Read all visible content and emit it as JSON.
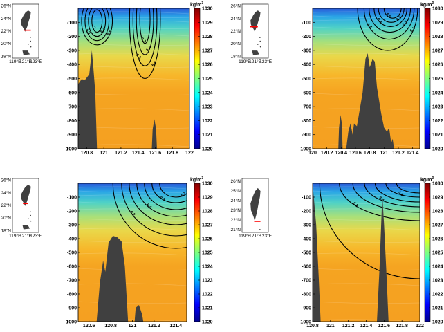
{
  "figure": {
    "panels": 4
  },
  "colors": {
    "cmap": [
      "#00008f",
      "#0000ff",
      "#007fff",
      "#00ffff",
      "#7fff7f",
      "#ffff00",
      "#ff7f00",
      "#ff0000",
      "#7f0000"
    ],
    "land": "#404040",
    "contour": "#000000",
    "section": "#ff0000"
  },
  "chart_data": [
    {
      "type": "heatmap",
      "title": "",
      "xlabel": "",
      "ylabel": "",
      "x_ticks": [
        "120.8",
        "121",
        "121.2",
        "121.4",
        "121.6",
        "121.8",
        "122"
      ],
      "y_ticks": [
        "-100",
        "-200",
        "-300",
        "-400",
        "-500",
        "-600",
        "-700",
        "-800",
        "-900",
        "-1000"
      ],
      "xlim": [
        120.7,
        122.0
      ],
      "ylim": [
        -1000,
        0
      ],
      "colorbar": {
        "unit_label": "kg/m",
        "unit_sup": "3",
        "ticks": [
          "1030",
          "1029",
          "1028",
          "1027",
          "1026",
          "1025",
          "1024",
          "1023",
          "1022",
          "1021",
          "1020"
        ],
        "range": [
          1020,
          1030
        ]
      },
      "contours": [
        {
          "label": "6.5",
          "cx": 120.92,
          "cy": -90,
          "rx": 0.18,
          "ry": 170
        },
        {
          "label": "6.3",
          "cx": 120.92,
          "cy": -90,
          "rx": 0.14,
          "ry": 140
        },
        {
          "label": "6.4",
          "cx": 120.92,
          "cy": -90,
          "rx": 0.1,
          "ry": 110
        },
        {
          "label": "7",
          "cx": 120.92,
          "cy": -90,
          "rx": 0.06,
          "ry": 80
        },
        {
          "label": "6.6",
          "cx": 121.48,
          "cy": -80,
          "rx": 0.18,
          "ry": 420
        },
        {
          "label": "6.5",
          "cx": 121.48,
          "cy": -80,
          "rx": 0.14,
          "ry": 330
        },
        {
          "label": "6.4",
          "cx": 121.48,
          "cy": -80,
          "rx": 0.1,
          "ry": 250
        },
        {
          "label": "6.3",
          "cx": 121.48,
          "cy": -80,
          "rx": 0.06,
          "ry": 170
        }
      ],
      "land": [
        {
          "x": 120.7,
          "y": -1000
        },
        {
          "x": 120.7,
          "y": -540
        },
        {
          "x": 120.74,
          "y": -505
        },
        {
          "x": 120.78,
          "y": -510
        },
        {
          "x": 120.83,
          "y": -470
        },
        {
          "x": 120.86,
          "y": -300
        },
        {
          "x": 120.88,
          "y": -440
        },
        {
          "x": 120.9,
          "y": -600
        },
        {
          "x": 120.92,
          "y": -1000
        },
        {
          "x": 121.56,
          "y": -1000
        },
        {
          "x": 121.57,
          "y": -860
        },
        {
          "x": 121.59,
          "y": -790
        },
        {
          "x": 121.61,
          "y": -860
        },
        {
          "x": 121.62,
          "y": -1000
        }
      ],
      "map": {
        "lat_ticks": [
          "26°N",
          "24°N",
          "22°N",
          "20°N",
          "18°N"
        ],
        "lon_ticks": [
          "119°E",
          "121°E",
          "123°E"
        ],
        "section": [
          [
            120.75,
            22.15
          ],
          [
            122.0,
            22.15
          ]
        ]
      }
    },
    {
      "type": "heatmap",
      "title": "",
      "xlabel": "",
      "ylabel": "",
      "x_ticks": [
        "120",
        "120.2",
        "120.4",
        "120.6",
        "120.8",
        "121",
        "121.2",
        "121.4"
      ],
      "y_ticks": [
        "-100",
        "-200",
        "-300",
        "-400",
        "-500",
        "-600",
        "-700",
        "-800",
        "-900",
        "-1000"
      ],
      "xlim": [
        120.0,
        121.5
      ],
      "ylim": [
        -1000,
        0
      ],
      "colorbar": {
        "unit_label": "kg/m",
        "unit_sup": "3",
        "ticks": [
          "1030",
          "1029",
          "1028",
          "1027",
          "1026",
          "1025",
          "1024",
          "1023",
          "1022",
          "1021",
          "1020"
        ],
        "range": [
          1020,
          1030
        ]
      },
      "contours": [
        {
          "label": "6.1",
          "cx": 121.05,
          "cy": 0,
          "rx": 0.42,
          "ry": 300
        },
        {
          "label": "6.2",
          "cx": 121.07,
          "cy": 0,
          "rx": 0.35,
          "ry": 220
        },
        {
          "label": "6.3",
          "cx": 121.08,
          "cy": 0,
          "rx": 0.29,
          "ry": 170
        },
        {
          "label": "6.4",
          "cx": 121.09,
          "cy": 0,
          "rx": 0.23,
          "ry": 130
        },
        {
          "label": "6.5",
          "cx": 121.1,
          "cy": 0,
          "rx": 0.18,
          "ry": 100
        },
        {
          "label": "6.6",
          "cx": 121.12,
          "cy": 0,
          "rx": 0.12,
          "ry": 70
        }
      ],
      "land": [
        {
          "x": 120.36,
          "y": -1000
        },
        {
          "x": 120.37,
          "y": -850
        },
        {
          "x": 120.39,
          "y": -760
        },
        {
          "x": 120.41,
          "y": -820
        },
        {
          "x": 120.42,
          "y": -1000
        },
        {
          "x": 120.47,
          "y": -1000
        },
        {
          "x": 120.5,
          "y": -880
        },
        {
          "x": 120.53,
          "y": -820
        },
        {
          "x": 120.56,
          "y": -900
        },
        {
          "x": 120.58,
          "y": -820
        },
        {
          "x": 120.62,
          "y": -840
        },
        {
          "x": 120.66,
          "y": -720
        },
        {
          "x": 120.7,
          "y": -600
        },
        {
          "x": 120.74,
          "y": -360
        },
        {
          "x": 120.77,
          "y": -320
        },
        {
          "x": 120.8,
          "y": -420
        },
        {
          "x": 120.84,
          "y": -360
        },
        {
          "x": 120.87,
          "y": -380
        },
        {
          "x": 120.9,
          "y": -560
        },
        {
          "x": 120.96,
          "y": -750
        },
        {
          "x": 121.0,
          "y": -850
        },
        {
          "x": 121.04,
          "y": -880
        },
        {
          "x": 121.07,
          "y": -850
        },
        {
          "x": 121.1,
          "y": -960
        },
        {
          "x": 121.12,
          "y": -930
        },
        {
          "x": 121.14,
          "y": -1000
        }
      ],
      "map": {
        "lat_ticks": [
          "26°N",
          "24°N",
          "22°N",
          "20°N",
          "18°N"
        ],
        "lon_ticks": [
          "119°E",
          "121°E",
          "123°E"
        ],
        "section": [
          [
            120.0,
            22.7
          ],
          [
            121.5,
            22.7
          ]
        ]
      }
    },
    {
      "type": "heatmap",
      "title": "",
      "xlabel": "",
      "ylabel": "",
      "x_ticks": [
        "120.6",
        "120.8",
        "121",
        "121.2",
        "121.4"
      ],
      "y_ticks": [
        "-100",
        "-200",
        "-300",
        "-400",
        "-500",
        "-600",
        "-700",
        "-800",
        "-900",
        "-1000"
      ],
      "xlim": [
        120.5,
        121.5
      ],
      "ylim": [
        -1000,
        0
      ],
      "colorbar": {
        "unit_label": "kg/m",
        "unit_sup": "3",
        "ticks": [
          "1030",
          "1029",
          "1028",
          "1027",
          "1026",
          "1025",
          "1024",
          "1023",
          "1022",
          "1021",
          "1020"
        ],
        "range": [
          1020,
          1030
        ]
      },
      "contours": [
        {
          "label": "6.1",
          "cx": 121.4,
          "cy": 0,
          "rx": 0.58,
          "ry": 470
        },
        {
          "label": "6.2",
          "cx": 121.4,
          "cy": 0,
          "rx": 0.5,
          "ry": 380
        },
        {
          "label": "6.3",
          "cx": 121.4,
          "cy": 0,
          "rx": 0.43,
          "ry": 300
        },
        {
          "label": "6.4",
          "cx": 121.4,
          "cy": 0,
          "rx": 0.36,
          "ry": 240
        },
        {
          "label": "6.5",
          "cx": 121.4,
          "cy": 0,
          "rx": 0.29,
          "ry": 190
        },
        {
          "label": "6.6",
          "cx": 121.4,
          "cy": 0,
          "rx": 0.22,
          "ry": 140
        },
        {
          "label": "6.7",
          "cx": 121.4,
          "cy": 0,
          "rx": 0.15,
          "ry": 100
        }
      ],
      "land": [
        {
          "x": 120.67,
          "y": -1000
        },
        {
          "x": 120.7,
          "y": -720
        },
        {
          "x": 120.73,
          "y": -560
        },
        {
          "x": 120.75,
          "y": -640
        },
        {
          "x": 120.78,
          "y": -430
        },
        {
          "x": 120.82,
          "y": -380
        },
        {
          "x": 120.86,
          "y": -390
        },
        {
          "x": 120.9,
          "y": -420
        },
        {
          "x": 120.93,
          "y": -600
        },
        {
          "x": 120.96,
          "y": -1000
        },
        {
          "x": 121.02,
          "y": -1000
        },
        {
          "x": 121.03,
          "y": -900
        },
        {
          "x": 121.06,
          "y": -880
        },
        {
          "x": 121.09,
          "y": -950
        },
        {
          "x": 121.1,
          "y": -1000
        }
      ],
      "map": {
        "lat_ticks": [
          "26°N",
          "24°N",
          "22°N",
          "20°N",
          "18°N"
        ],
        "lon_ticks": [
          "119°E",
          "121°E",
          "123°E"
        ],
        "section": [
          [
            120.5,
            22.3
          ],
          [
            121.5,
            22.3
          ]
        ]
      }
    },
    {
      "type": "heatmap",
      "title": "",
      "xlabel": "",
      "ylabel": "",
      "x_ticks": [
        "120.8",
        "121",
        "121.2",
        "121.4",
        "121.6",
        "121.8",
        "122"
      ],
      "y_ticks": [
        "-100",
        "-200",
        "-300",
        "-400",
        "-500",
        "-600",
        "-700",
        "-800",
        "-900",
        "-1000"
      ],
      "xlim": [
        120.8,
        122.0
      ],
      "ylim": [
        -1000,
        0
      ],
      "colorbar": {
        "unit_label": "kg/m",
        "unit_sup": "3",
        "ticks": [
          "1030",
          "1029",
          "1028",
          "1027",
          "1026",
          "1025",
          "1024",
          "1023",
          "1022",
          "1021",
          "1020"
        ],
        "range": [
          1020,
          1030
        ]
      },
      "contours": [
        {
          "label": "6.1",
          "cx": 122.0,
          "cy": 0,
          "rx": 1.12,
          "ry": 690
        },
        {
          "label": "6.2",
          "cx": 122.0,
          "cy": 0,
          "rx": 0.9,
          "ry": 270
        },
        {
          "label": "6.3",
          "cx": 122.0,
          "cy": 0,
          "rx": 0.75,
          "ry": 210
        },
        {
          "label": "6.4",
          "cx": 122.0,
          "cy": 0,
          "rx": 0.62,
          "ry": 170
        },
        {
          "label": "6.5",
          "cx": 122.0,
          "cy": 0,
          "rx": 0.5,
          "ry": 135
        },
        {
          "label": "6.6",
          "cx": 122.0,
          "cy": 0,
          "rx": 0.38,
          "ry": 100
        },
        {
          "label": "6.7",
          "cx": 122.0,
          "cy": 0,
          "rx": 0.26,
          "ry": 70
        }
      ],
      "land": [
        {
          "x": 120.8,
          "y": -1000
        },
        {
          "x": 120.8,
          "y": 0
        },
        {
          "x": 120.84,
          "y": -300
        },
        {
          "x": 120.87,
          "y": -700
        },
        {
          "x": 120.89,
          "y": -1000
        },
        {
          "x": 121.52,
          "y": -1000
        },
        {
          "x": 121.55,
          "y": -600
        },
        {
          "x": 121.58,
          "y": -80
        },
        {
          "x": 121.6,
          "y": -300
        },
        {
          "x": 121.63,
          "y": -700
        },
        {
          "x": 121.65,
          "y": -1000
        }
      ],
      "map": {
        "lat_ticks": [
          "26°N",
          "25°N",
          "24°N",
          "23°N",
          "22°N",
          "21°N"
        ],
        "lon_ticks": [
          "119°E",
          "121°E",
          "123°E"
        ],
        "section": [
          [
            120.8,
            21.85
          ],
          [
            122.0,
            21.85
          ]
        ]
      }
    }
  ]
}
